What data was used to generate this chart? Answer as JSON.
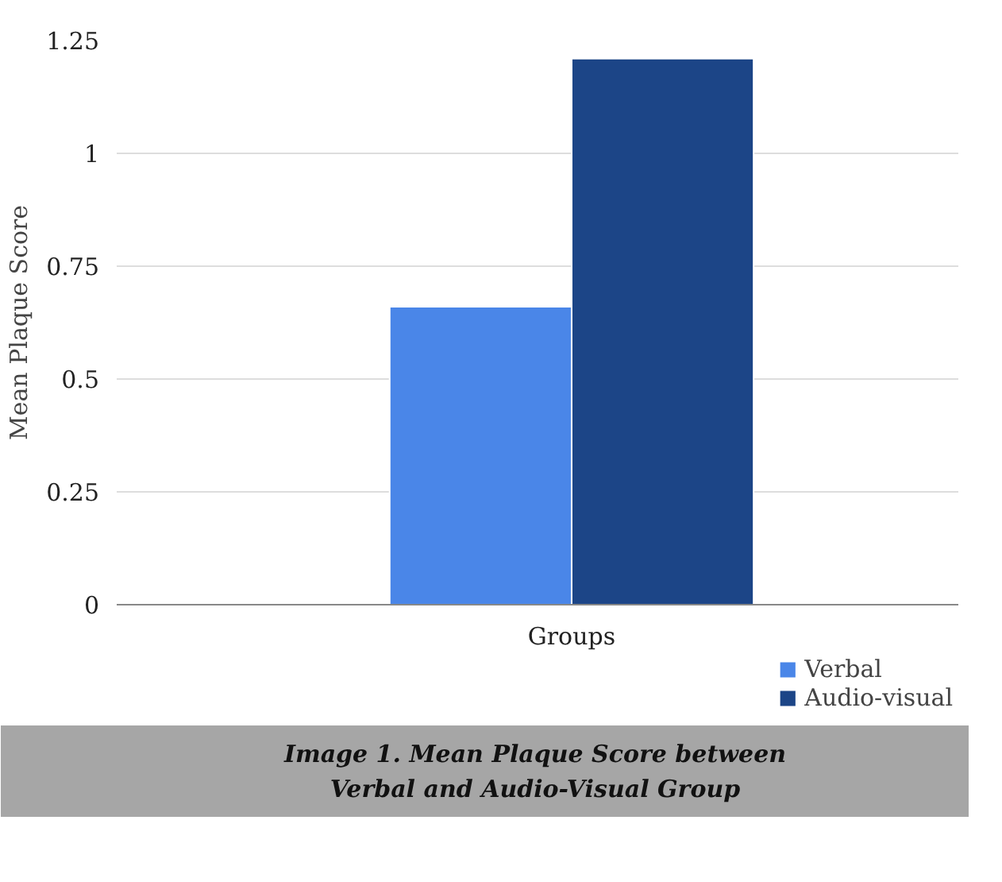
{
  "chart_data": {
    "type": "bar",
    "title": "Image 1. Mean Plaque Score between Verbal and Audio-Visual Group",
    "ylabel": "Mean Plaque Score",
    "categories": [
      "Groups"
    ],
    "series": [
      {
        "name": "Verbal",
        "color": "#4a86e8",
        "values": [
          0.66
        ]
      },
      {
        "name": "Audio-visual",
        "color": "#1c4587",
        "values": [
          1.21
        ]
      }
    ],
    "ylim": [
      0,
      1.25
    ],
    "yticks": [
      0,
      0.25,
      0.5,
      0.75,
      1,
      1.25
    ],
    "grid": "y",
    "legend": "bottom right"
  }
}
